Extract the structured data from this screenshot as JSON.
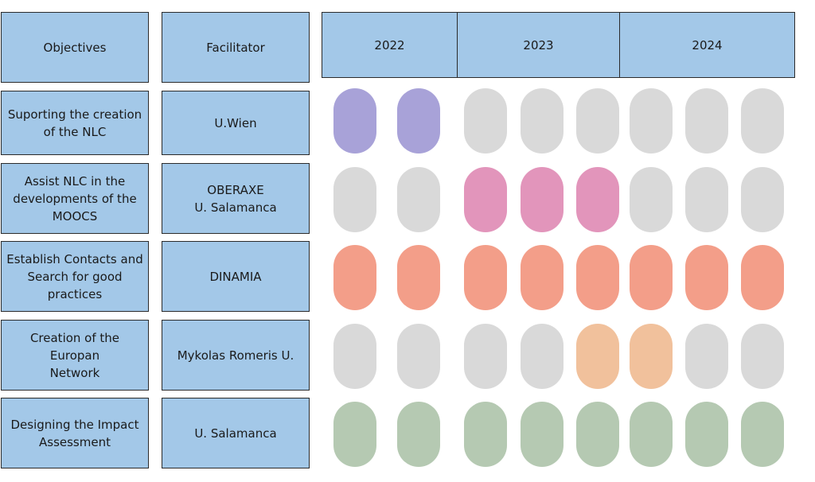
{
  "headers": {
    "objectives": "Objectives",
    "facilitator": "Facilitator"
  },
  "years": [
    "2022",
    "2023",
    "2024"
  ],
  "colors": {
    "inactive": "#d9d9d9",
    "purple": "#a8a2d8",
    "pink": "#e295bb",
    "salmon": "#f39e89",
    "peach": "#f1c19c",
    "green": "#b5c9b2",
    "box_fill": "#a3c8e8",
    "box_border": "#2b2b2b"
  },
  "rows": [
    {
      "objective": "Suporting the creation\nof the NLC",
      "facilitator": "U.Wien",
      "periods": [
        "purple",
        "purple",
        "inactive",
        "inactive",
        "inactive",
        "inactive",
        "inactive",
        "inactive"
      ]
    },
    {
      "objective": "Assist NLC in the\ndevelopments of the\nMOOCS",
      "facilitator": "OBERAXE\nU. Salamanca",
      "periods": [
        "inactive",
        "inactive",
        "pink",
        "pink",
        "pink",
        "inactive",
        "inactive",
        "inactive"
      ]
    },
    {
      "objective": "Establish Contacts and\nSearch for good\npractices",
      "facilitator": "DINAMIA",
      "periods": [
        "salmon",
        "salmon",
        "salmon",
        "salmon",
        "salmon",
        "salmon",
        "salmon",
        "salmon"
      ]
    },
    {
      "objective": "Creation of the Europan\nNetwork",
      "facilitator": "Mykolas Romeris U.",
      "periods": [
        "inactive",
        "inactive",
        "inactive",
        "inactive",
        "peach",
        "peach",
        "inactive",
        "inactive"
      ]
    },
    {
      "objective": "Designing the Impact\nAssessment",
      "facilitator": "U. Salamanca",
      "periods": [
        "green",
        "green",
        "green",
        "green",
        "green",
        "green",
        "green",
        "green"
      ]
    }
  ]
}
